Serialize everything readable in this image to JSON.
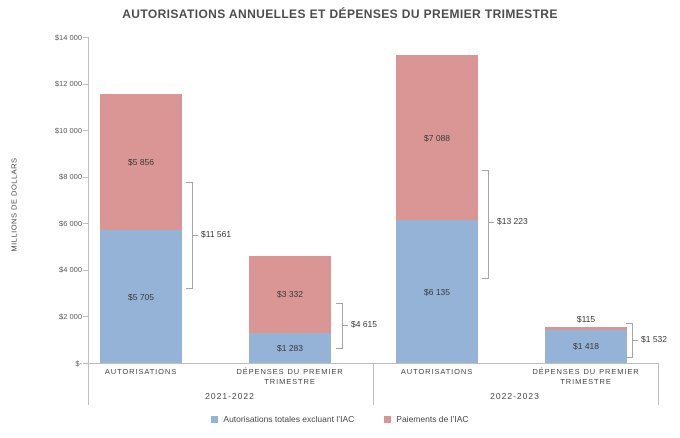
{
  "chart_data": {
    "type": "bar",
    "stacked": true,
    "title": "AUTORISATIONS ANNUELLES ET DÉPENSES DU PREMIER TRIMESTRE",
    "ylabel": "MILLIONS DE DOLLARS",
    "ylim": [
      0,
      14000
    ],
    "ytick_step": 2000,
    "ytick_labels": [
      "$-",
      "$2 000",
      "$4 000",
      "$6 000",
      "$8 000",
      "$10 000",
      "$12 000",
      "$14 000"
    ],
    "grid": "off",
    "legend_position": "bottom",
    "groups": [
      "2021-2022",
      "2022-2023"
    ],
    "categories": [
      "AUTORISATIONS",
      "DÉPENSES DU PREMIER TRIMESTRE",
      "AUTORISATIONS",
      "DÉPENSES DU PREMIER TRIMESTRE"
    ],
    "series": [
      {
        "name": "Autorisations totales excluant l’IAC",
        "color": "#95B3D7",
        "values": [
          5705,
          1283,
          6135,
          1418
        ],
        "labels": [
          "$5 705",
          "$1 283",
          "$6 135",
          "$1 418"
        ]
      },
      {
        "name": "Paiements de l’IAC",
        "color": "#D99694",
        "values": [
          5856,
          3332,
          7088,
          115
        ],
        "labels": [
          "$5 856",
          "$3 332",
          "$7 088",
          "$115"
        ]
      }
    ],
    "totals": {
      "values": [
        11561,
        4615,
        13223,
        1532
      ],
      "labels": [
        "$11 561",
        "$4 615",
        "$13 223",
        "$1 532"
      ]
    }
  }
}
